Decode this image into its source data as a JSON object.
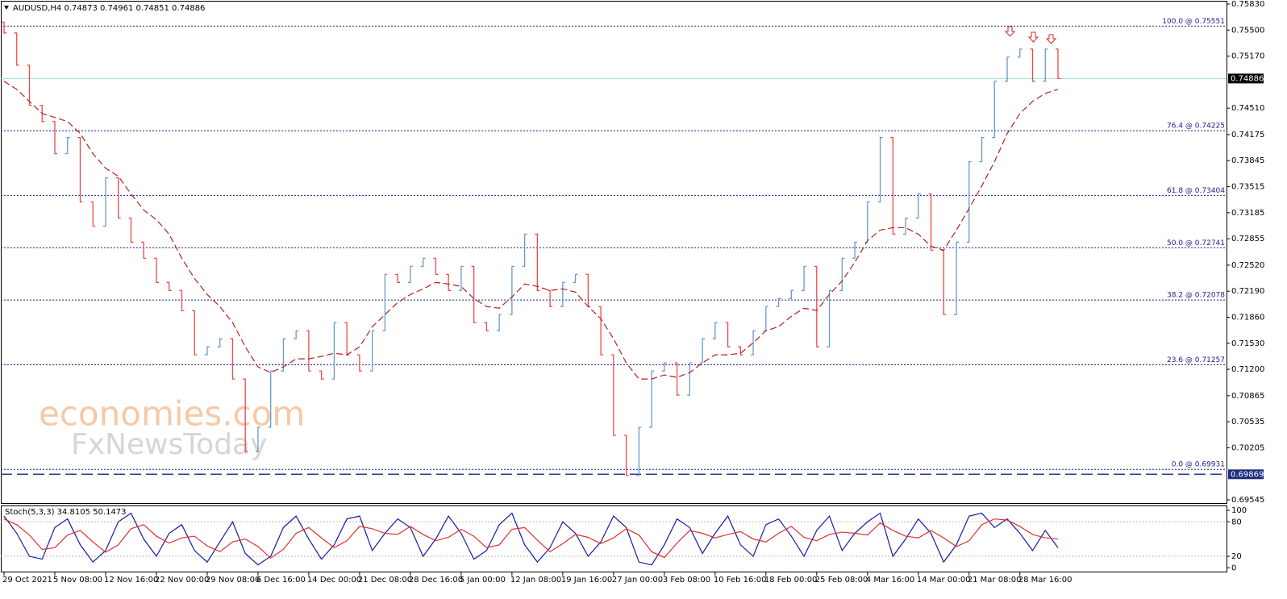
{
  "header": "AUDUSD,H4  0.74873 0.74961 0.74851 0.74886",
  "chart_data": {
    "type": "ohlc",
    "categories": [
      "29 Oct 2021",
      null,
      null,
      null,
      "5 Nov 08:00",
      null,
      null,
      null,
      "12 Nov 16:00",
      null,
      null,
      null,
      "22 Nov 00:00",
      null,
      null,
      null,
      "29 Nov 08:00",
      null,
      null,
      null,
      "6 Dec 16:00",
      null,
      null,
      null,
      "14 Dec 00:00",
      null,
      null,
      null,
      "21 Dec 08:00",
      null,
      null,
      null,
      "28 Dec 16:00",
      null,
      null,
      null,
      "5 Jan 00:00",
      null,
      null,
      null,
      "12 Jan 08:00",
      null,
      null,
      null,
      "19 Jan 16:00",
      null,
      null,
      null,
      "27 Jan 00:00",
      null,
      null,
      null,
      "3 Feb 08:00",
      null,
      null,
      null,
      "10 Feb 16:00",
      null,
      null,
      null,
      "18 Feb 00:00",
      null,
      null,
      null,
      "25 Feb 08:00",
      null,
      null,
      null,
      "4 Mar 16:00",
      null,
      null,
      null,
      "14 Mar 00:00",
      null,
      null,
      null,
      "21 Mar 08:00",
      null,
      null,
      null,
      "28 Mar 16:00",
      null,
      null,
      null
    ],
    "open": [
      0.756,
      0.75463,
      0.75055,
      0.74545,
      0.74341,
      0.73933,
      0.74137,
      0.73321,
      0.73015,
      0.73627,
      0.73117,
      0.72811,
      0.72607,
      0.72301,
      0.72199,
      0.71944,
      0.71383,
      0.71485,
      0.71587,
      0.71077,
      0.70159,
      0.70465,
      0.71179,
      0.71587,
      0.71689,
      0.71179,
      0.71077,
      0.71791,
      0.71383,
      0.71179,
      0.71689,
      0.72403,
      0.72301,
      0.72505,
      0.72607,
      0.72403,
      0.72199,
      0.72505,
      0.71791,
      0.71689,
      0.71893,
      0.72505,
      0.72913,
      0.72199,
      0.71995,
      0.72301,
      0.72403,
      0.71995,
      0.71383,
      0.70363,
      0.69853,
      0.70465,
      0.71179,
      0.71281,
      0.70873,
      0.71281,
      0.71587,
      0.71791,
      0.71485,
      0.71383,
      0.71689,
      0.71995,
      0.72097,
      0.72199,
      0.72505,
      0.71485,
      0.72199,
      0.72607,
      0.72811,
      0.73321,
      0.74137,
      0.72913,
      0.73117,
      0.73423,
      0.72709,
      0.71893,
      0.72811,
      0.73831,
      0.74137,
      0.74851,
      0.75157,
      0.75259,
      0.74851,
      0.75259
    ],
    "close": [
      0.75463,
      0.75055,
      0.74545,
      0.74341,
      0.73933,
      0.74137,
      0.73321,
      0.73015,
      0.73627,
      0.73117,
      0.72811,
      0.72607,
      0.72301,
      0.72199,
      0.71944,
      0.71383,
      0.71485,
      0.71587,
      0.71077,
      0.70159,
      0.70465,
      0.71179,
      0.71587,
      0.71689,
      0.71179,
      0.71077,
      0.71791,
      0.71383,
      0.71179,
      0.71689,
      0.72403,
      0.72301,
      0.72505,
      0.72607,
      0.72403,
      0.72199,
      0.72505,
      0.71791,
      0.71689,
      0.71893,
      0.72505,
      0.72913,
      0.72199,
      0.71995,
      0.72301,
      0.72403,
      0.71995,
      0.71383,
      0.70363,
      0.69853,
      0.70465,
      0.71179,
      0.71281,
      0.70873,
      0.71281,
      0.71587,
      0.71791,
      0.71485,
      0.71383,
      0.71689,
      0.71995,
      0.72097,
      0.72199,
      0.72505,
      0.71485,
      0.72199,
      0.72607,
      0.72811,
      0.73321,
      0.74137,
      0.72913,
      0.73117,
      0.73423,
      0.72709,
      0.71893,
      0.72811,
      0.73831,
      0.74137,
      0.74851,
      0.75157,
      0.75259,
      0.74851,
      0.75259,
      0.74886
    ],
    "up_color": "#6a98cc",
    "down_color": "#f04848",
    "ylim": [
      0.69494,
      0.75871
    ],
    "yticks": [
      {
        "value": 0.7583,
        "label": "0.75830"
      },
      {
        "value": 0.755,
        "label": "0.75500"
      },
      {
        "value": 0.7517,
        "label": "0.75170"
      },
      {
        "value": 0.7451,
        "label": "0.74510"
      },
      0.74175,
      0.73845,
      0.73515,
      0.73185,
      0.72855,
      {
        "value": 0.7252,
        "label": "0.72520"
      },
      {
        "value": 0.7219,
        "label": "0.72190"
      },
      {
        "value": 0.7186,
        "label": "0.71860"
      },
      {
        "value": 0.7153,
        "label": "0.71530"
      },
      {
        "value": 0.712,
        "label": "0.71200"
      },
      0.70865,
      0.70535,
      0.70205,
      0.69545
    ],
    "moving_average": {
      "color": "#b22222",
      "values": [
        0.74851,
        0.74749,
        0.74596,
        0.74443,
        0.74392,
        0.74341,
        0.74188,
        0.73933,
        0.73749,
        0.73647,
        0.73423,
        0.73219,
        0.73097,
        0.72913,
        0.72607,
        0.72352,
        0.72148,
        0.71995,
        0.71791,
        0.71485,
        0.7123,
        0.71159,
        0.7123,
        0.71332,
        0.71332,
        0.71363,
        0.71403,
        0.71383,
        0.71485,
        0.7174,
        0.71893,
        0.72046,
        0.72148,
        0.72219,
        0.72301,
        0.72281,
        0.7225,
        0.72097,
        0.71995,
        0.71975,
        0.72117,
        0.72281,
        0.7225,
        0.72199,
        0.72219,
        0.72179,
        0.71995,
        0.71842,
        0.71587,
        0.71281,
        0.71077,
        0.71077,
        0.71128,
        0.71097,
        0.71159,
        0.71281,
        0.71383,
        0.71383,
        0.71403,
        0.71536,
        0.71689,
        0.7174,
        0.71873,
        0.71975,
        0.71944,
        0.72148,
        0.72321,
        0.72556,
        0.72831,
        0.72964,
        0.72995,
        0.72995,
        0.72913,
        0.7276,
        0.72709,
        0.72964,
        0.73239,
        0.73525,
        0.73831,
        0.74188,
        0.74443,
        0.74596,
        0.74698,
        0.74749
      ]
    },
    "levels": [
      {
        "label": "100.0 @ 0.75551",
        "value": 0.75551
      },
      {
        "label": "76.4 @ 0.74225",
        "value": 0.74225
      },
      {
        "label": "61.8 @ 0.73404",
        "value": 0.73404
      },
      {
        "label": "50.0 @ 0.72741",
        "value": 0.72741
      },
      {
        "label": "38.2 @ 0.72078",
        "value": 0.72078
      },
      {
        "label": "23.6 @ 0.71257",
        "value": 0.71257
      },
      {
        "label": "0.0 @ 0.69931",
        "value": 0.69931
      }
    ],
    "level_color": "#1c1c8c",
    "current_price": 0.74886,
    "marked_price": 0.69869,
    "watermark": [
      "economies.com",
      "FxNewsToday"
    ]
  },
  "stochastic": {
    "type": "line",
    "title": "Stoch(5,3,3) 34.8105 50.1473",
    "ylim": [
      -8,
      107
    ],
    "yticks": [
      100,
      80,
      20,
      0
    ],
    "levels": [
      80,
      20
    ],
    "series": [
      {
        "color": "#1a1aa0",
        "values": [
          90,
          60,
          20,
          15,
          70,
          85,
          40,
          10,
          30,
          80,
          95,
          50,
          20,
          60,
          75,
          30,
          10,
          45,
          80,
          25,
          5,
          20,
          70,
          90,
          50,
          15,
          40,
          85,
          90,
          30,
          60,
          85,
          70,
          20,
          50,
          90,
          60,
          15,
          30,
          75,
          95,
          40,
          10,
          35,
          80,
          60,
          20,
          45,
          90,
          70,
          10,
          5,
          40,
          85,
          70,
          25,
          60,
          90,
          40,
          20,
          75,
          85,
          55,
          20,
          65,
          90,
          30,
          60,
          80,
          95,
          20,
          50,
          85,
          60,
          10,
          40,
          90,
          95,
          70,
          85,
          60,
          30,
          65,
          34.8105
        ]
      },
      {
        "color": "#e03030",
        "values": [
          85,
          75,
          57,
          32,
          35,
          57,
          65,
          45,
          27,
          40,
          68,
          75,
          55,
          43,
          52,
          55,
          38,
          28,
          45,
          50,
          37,
          17,
          32,
          60,
          70,
          52,
          35,
          47,
          72,
          68,
          60,
          58,
          72,
          58,
          47,
          53,
          67,
          55,
          35,
          40,
          67,
          70,
          48,
          28,
          42,
          58,
          53,
          42,
          52,
          68,
          57,
          28,
          18,
          43,
          65,
          60,
          52,
          58,
          63,
          50,
          45,
          60,
          72,
          53,
          47,
          58,
          62,
          60,
          57,
          78,
          65,
          55,
          52,
          65,
          52,
          37,
          47,
          75,
          85,
          83,
          72,
          58,
          52,
          50.1473
        ]
      }
    ]
  }
}
